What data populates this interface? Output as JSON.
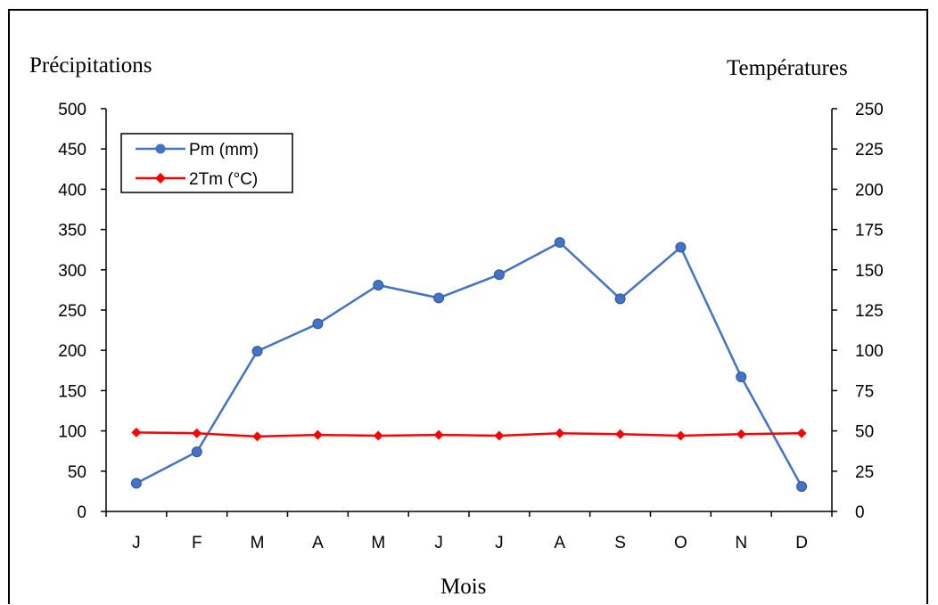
{
  "chart_data": {
    "type": "line",
    "ylabel_left": "Précipitations",
    "ylabel_right": "Températures",
    "xlabel": "Mois",
    "categories": [
      "J",
      "F",
      "M",
      "A",
      "M",
      "J",
      "J",
      "A",
      "S",
      "O",
      "N",
      "D"
    ],
    "ylim_left": [
      0,
      500
    ],
    "yticks_left": [
      0,
      50,
      100,
      150,
      200,
      250,
      300,
      350,
      400,
      450,
      500
    ],
    "ylim_right": [
      0,
      250
    ],
    "yticks_right": [
      0,
      25,
      50,
      75,
      100,
      125,
      150,
      175,
      200,
      225,
      250
    ],
    "grid": false,
    "legend_position": "top-left",
    "series": [
      {
        "name": "Pm (mm)",
        "axis": "left",
        "color": "#4472C4",
        "marker": "circle",
        "values": [
          35,
          74,
          199,
          233,
          281,
          265,
          294,
          334,
          264,
          328,
          167,
          31
        ]
      },
      {
        "name": "2Tm (°C)",
        "axis": "left",
        "color": "#FF0000",
        "marker": "diamond",
        "values": [
          98,
          97,
          93,
          95,
          94,
          95,
          94,
          97,
          96,
          94,
          96,
          97
        ]
      }
    ]
  }
}
